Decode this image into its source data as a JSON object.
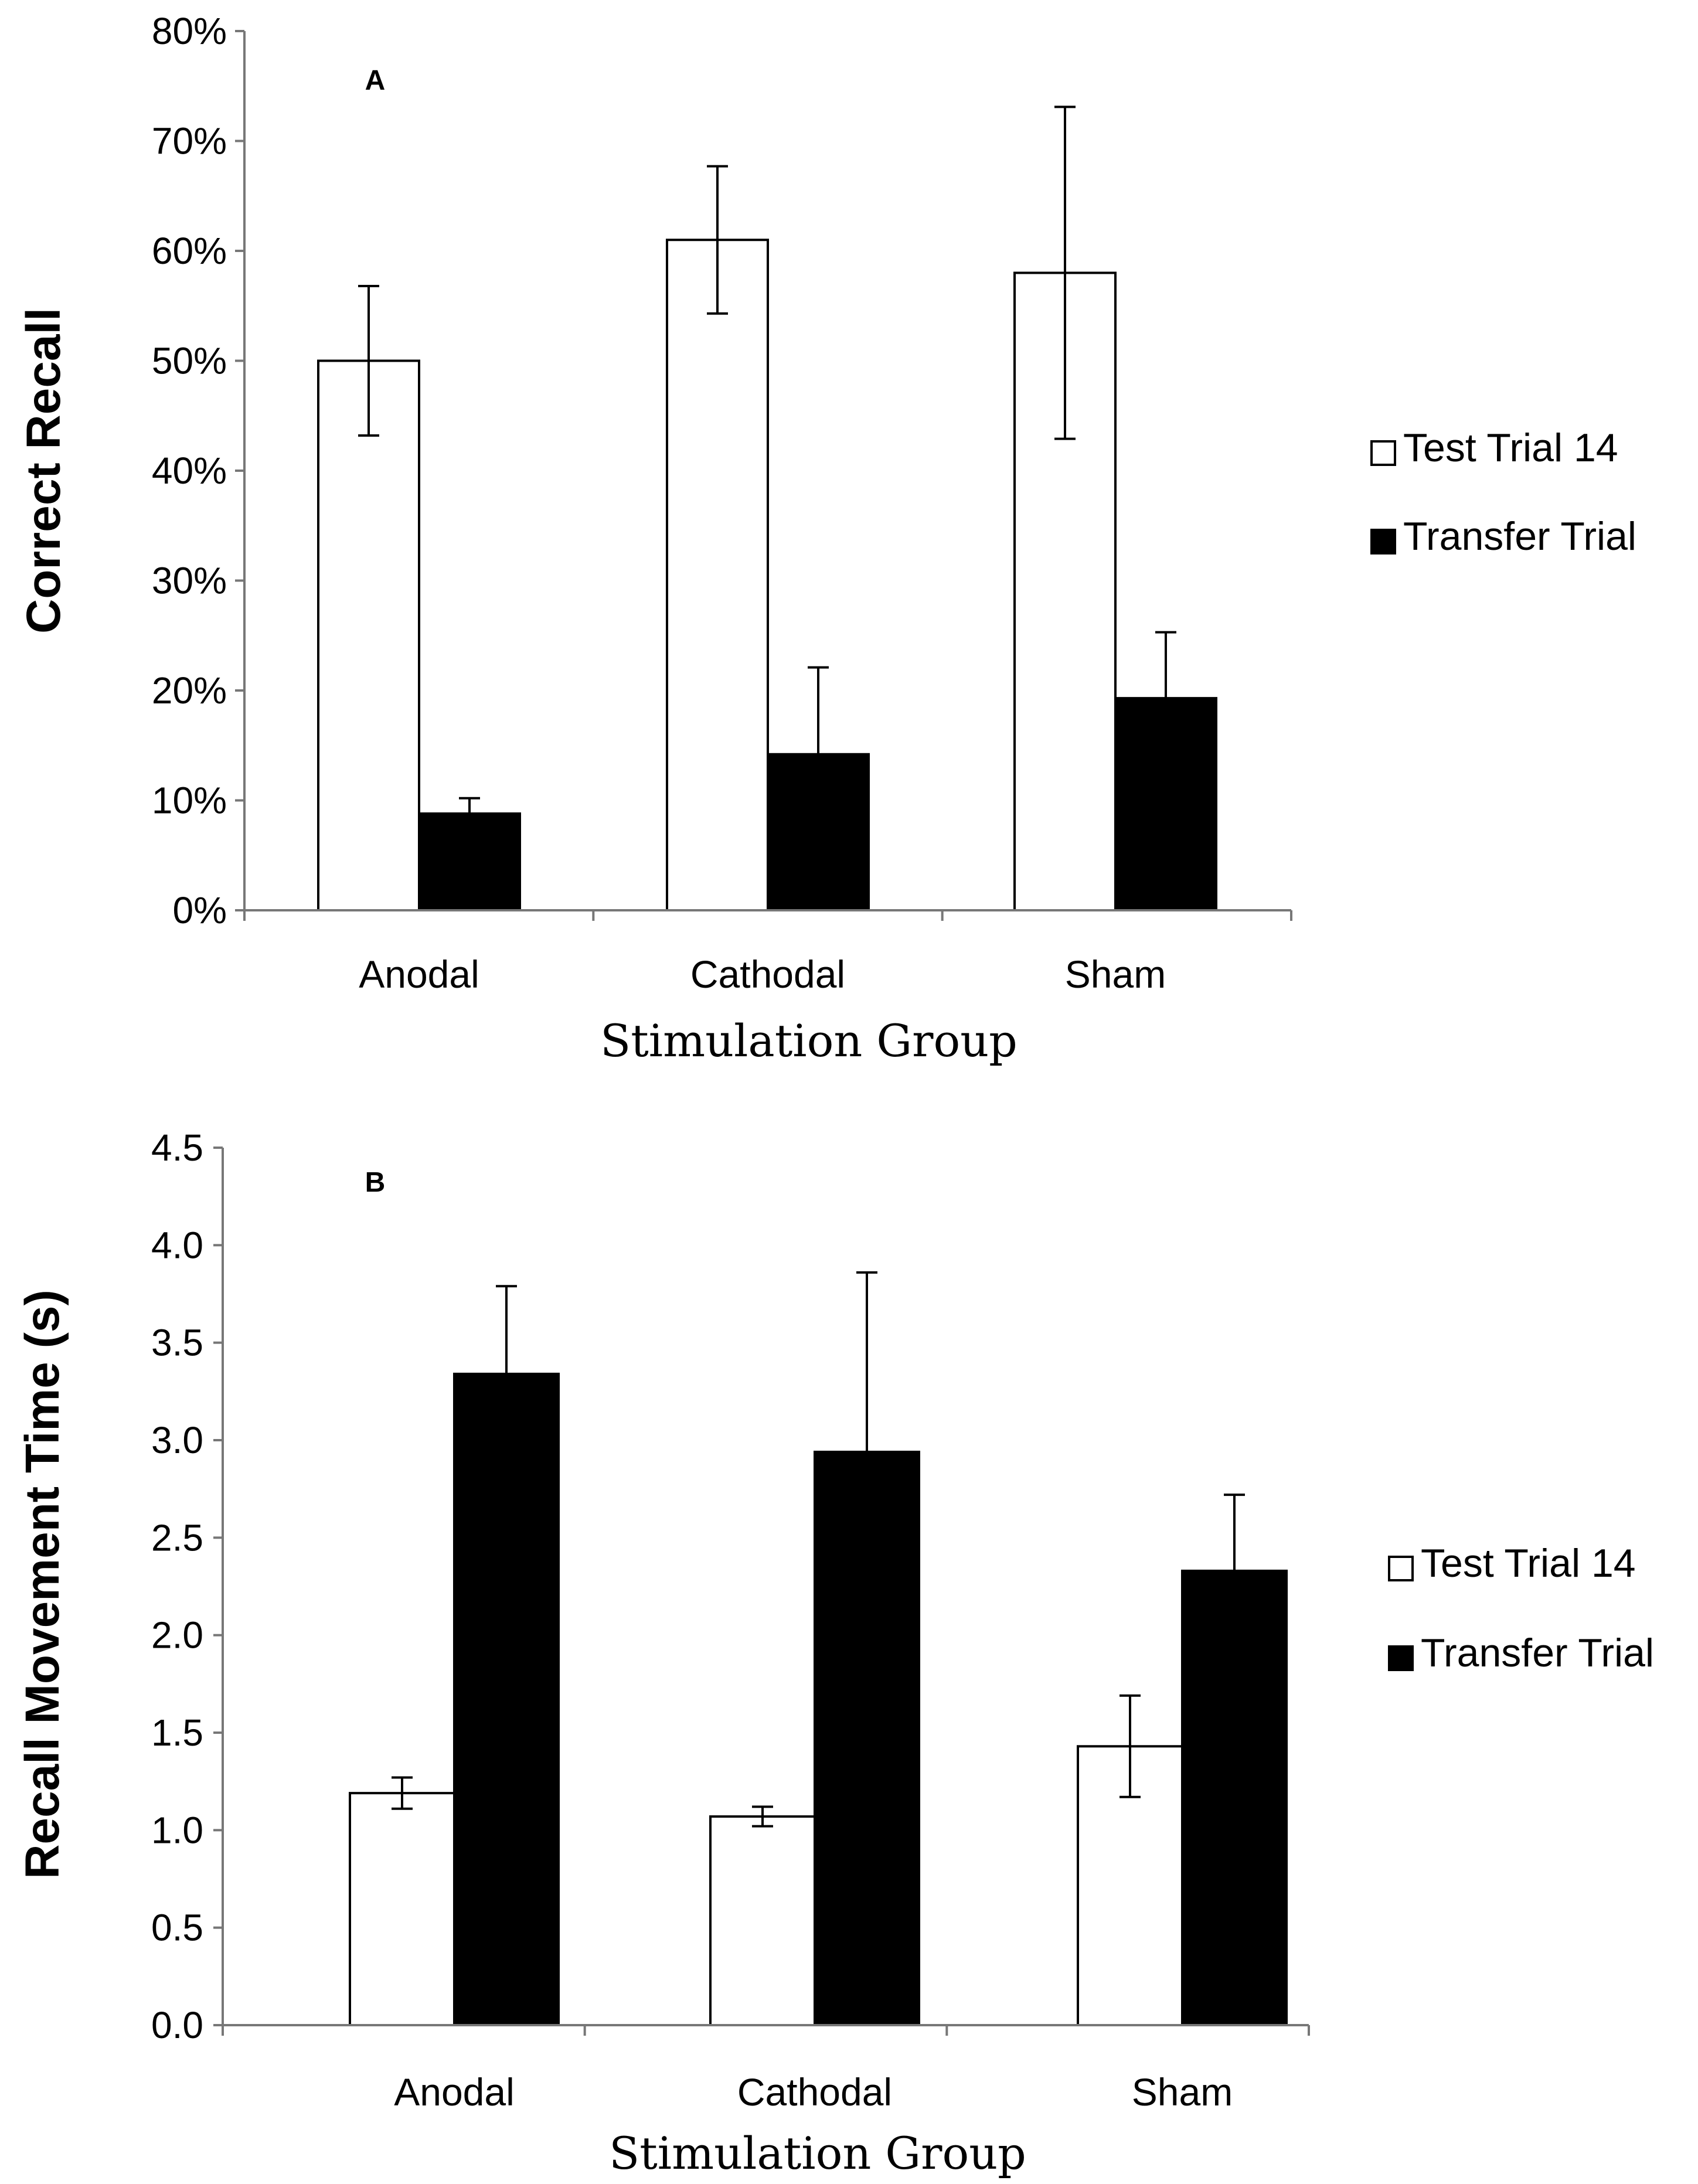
{
  "chart_data": [
    {
      "type": "bar",
      "panel_label": "A",
      "title": "",
      "xlabel": "Stimulation Group",
      "ylabel": "Correct Recall",
      "categories": [
        "Anodal",
        "Cathodal",
        "Sham"
      ],
      "ylim": [
        0,
        0.8
      ],
      "yticks": [
        0,
        0.1,
        0.2,
        0.3,
        0.4,
        0.5,
        0.6,
        0.7,
        0.8
      ],
      "ytick_labels": [
        "0%",
        "10%",
        "20%",
        "30%",
        "40%",
        "50%",
        "60%",
        "70%",
        "80%"
      ],
      "grid": false,
      "legend_position": "right",
      "series": [
        {
          "name": "Test Trial 14",
          "fill": "#ffffff",
          "stroke": "#000000",
          "values": [
            0.5,
            0.61,
            0.58
          ],
          "errors": [
            0.068,
            0.067,
            0.151
          ]
        },
        {
          "name": "Transfer Trial",
          "fill": "#000000",
          "stroke": "#000000",
          "values": [
            0.088,
            0.142,
            0.193
          ],
          "errors": [
            0.014,
            0.079,
            0.06
          ]
        }
      ]
    },
    {
      "type": "bar",
      "panel_label": "B",
      "title": "",
      "xlabel": "Stimulation Group",
      "ylabel": "Recall Movement Time (s)",
      "categories": [
        "Anodal",
        "Cathodal",
        "Sham"
      ],
      "ylim": [
        0,
        4.5
      ],
      "yticks": [
        0,
        0.5,
        1.0,
        1.5,
        2.0,
        2.5,
        3.0,
        3.5,
        4.0,
        4.5
      ],
      "ytick_labels": [
        "0.0",
        "0.5",
        "1.0",
        "1.5",
        "2.0",
        "2.5",
        "3.0",
        "3.5",
        "4.0",
        "4.5"
      ],
      "grid": false,
      "legend_position": "right",
      "series": [
        {
          "name": "Test Trial 14",
          "fill": "#ffffff",
          "stroke": "#000000",
          "values": [
            1.19,
            1.07,
            1.43
          ],
          "errors": [
            0.08,
            0.05,
            0.26
          ]
        },
        {
          "name": "Transfer Trial",
          "fill": "#000000",
          "stroke": "#000000",
          "values": [
            3.34,
            2.94,
            2.33
          ],
          "errors": [
            0.45,
            0.92,
            0.39
          ]
        }
      ]
    }
  ]
}
